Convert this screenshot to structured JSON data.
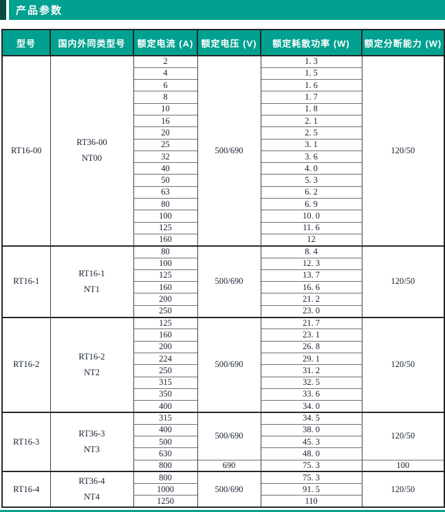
{
  "header": {
    "title": "产品参数"
  },
  "colors": {
    "accent_teal": "#00a190",
    "accent_dark_square": "#0d4a40",
    "header_text": "#ffffff",
    "table_border": "#262626",
    "row_line": "#6e6e6e",
    "body_text": "#16202e"
  },
  "table": {
    "columns": [
      "型号",
      "国内外同类型号",
      "额定电流 (A)",
      "额定电压 (V)",
      "额定耗散功率 (W)",
      "额定分断能力 (W)"
    ],
    "groups": [
      {
        "model": "RT16-00",
        "equivalent": [
          "RT36-00",
          "NT00"
        ],
        "rows": [
          {
            "current": "2",
            "power": "1. 3"
          },
          {
            "current": "4",
            "power": "1. 5"
          },
          {
            "current": "6",
            "power": "1. 6"
          },
          {
            "current": "8",
            "power": "1. 7"
          },
          {
            "current": "10",
            "power": "1. 8"
          },
          {
            "current": "16",
            "power": "2. 1"
          },
          {
            "current": "20",
            "power": "2. 5"
          },
          {
            "current": "25",
            "power": "3. 1"
          },
          {
            "current": "32",
            "power": "3. 6"
          },
          {
            "current": "40",
            "power": "4. 0"
          },
          {
            "current": "50",
            "power": "5. 3"
          },
          {
            "current": "63",
            "power": "6. 2"
          },
          {
            "current": "80",
            "power": "6. 9"
          },
          {
            "current": "100",
            "power": "10. 0"
          },
          {
            "current": "125",
            "power": "11. 6"
          },
          {
            "current": "160",
            "power": "12"
          }
        ],
        "voltage_spans": [
          {
            "text": "500/690",
            "rows": 16
          }
        ],
        "breaking_spans": [
          {
            "text": "120/50",
            "rows": 16
          }
        ]
      },
      {
        "model": "RT16-1",
        "equivalent": [
          "RT16-1",
          "NT1"
        ],
        "rows": [
          {
            "current": "80",
            "power": "8. 4"
          },
          {
            "current": "100",
            "power": "12. 3"
          },
          {
            "current": "125",
            "power": "13. 7"
          },
          {
            "current": "160",
            "power": "16. 6"
          },
          {
            "current": "200",
            "power": "21. 2"
          },
          {
            "current": "250",
            "power": "23. 0"
          }
        ],
        "voltage_spans": [
          {
            "text": "500/690",
            "rows": 6
          }
        ],
        "breaking_spans": [
          {
            "text": "120/50",
            "rows": 6
          }
        ]
      },
      {
        "model": "RT16-2",
        "equivalent": [
          "RT16-2",
          "NT2"
        ],
        "rows": [
          {
            "current": "125",
            "power": "21. 7"
          },
          {
            "current": "160",
            "power": "23. 1"
          },
          {
            "current": "200",
            "power": "26. 8"
          },
          {
            "current": "224",
            "power": "29. 1"
          },
          {
            "current": "250",
            "power": "31. 2"
          },
          {
            "current": "315",
            "power": "32. 5"
          },
          {
            "current": "350",
            "power": "33. 6"
          },
          {
            "current": "400",
            "power": "34. 0"
          }
        ],
        "voltage_spans": [
          {
            "text": "500/690",
            "rows": 8
          }
        ],
        "breaking_spans": [
          {
            "text": "120/50",
            "rows": 8
          }
        ]
      },
      {
        "model": "RT16-3",
        "equivalent": [
          "RT36-3",
          "NT3"
        ],
        "rows": [
          {
            "current": "315",
            "power": "34. 5"
          },
          {
            "current": "400",
            "power": "38. 0"
          },
          {
            "current": "500",
            "power": "45. 3"
          },
          {
            "current": "630",
            "power": "48. 0"
          },
          {
            "current": "800",
            "power": "75. 3"
          }
        ],
        "voltage_spans": [
          {
            "text": "500/690",
            "rows": 4
          },
          {
            "text": "690",
            "rows": 1
          }
        ],
        "breaking_spans": [
          {
            "text": "120/50",
            "rows": 4
          },
          {
            "text": "100",
            "rows": 1
          }
        ]
      },
      {
        "model": "RT16-4",
        "equivalent": [
          "RT36-4",
          "NT4"
        ],
        "rows": [
          {
            "current": "800",
            "power": "75. 3"
          },
          {
            "current": "1000",
            "power": "91. 5"
          },
          {
            "current": "1250",
            "power": "110"
          }
        ],
        "voltage_spans": [
          {
            "text": "500/690",
            "rows": 3
          }
        ],
        "breaking_spans": [
          {
            "text": "120/50",
            "rows": 3
          }
        ]
      }
    ]
  }
}
